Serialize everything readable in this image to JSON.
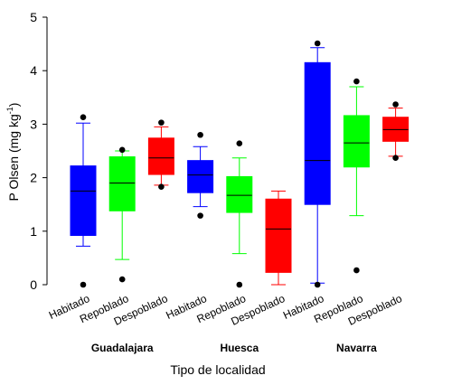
{
  "chart_data": {
    "type": "box",
    "ylabel": "P Olsen (mg kg-1)",
    "ylabel_main": "P Olsen (mg kg",
    "ylabel_sup": "-1",
    "ylabel_end": ")",
    "xlabel": "Tipo de localidad",
    "ylim": [
      0,
      5
    ],
    "yticks": [
      "0",
      "1",
      "2",
      "3",
      "4",
      "5"
    ],
    "grid": false,
    "groups": [
      "Guadalajara",
      "Huesca",
      "Navarra"
    ],
    "colors": {
      "Habitado": "#0000ff",
      "Repoblado": "#00ff00",
      "Despoblado": "#ff0000"
    },
    "boxes": [
      {
        "group": "Guadalajara",
        "category": "Habitado",
        "min": 0.72,
        "q1": 0.92,
        "median": 1.75,
        "q3": 2.22,
        "max": 3.02,
        "outliers": [
          0.0,
          3.13
        ]
      },
      {
        "group": "Guadalajara",
        "category": "Repoblado",
        "min": 0.47,
        "q1": 1.38,
        "median": 1.9,
        "q3": 2.39,
        "max": 2.5,
        "outliers": [
          0.1,
          2.52
        ]
      },
      {
        "group": "Guadalajara",
        "category": "Despoblado",
        "min": 1.86,
        "q1": 2.06,
        "median": 2.37,
        "q3": 2.74,
        "max": 2.95,
        "outliers": [
          1.83,
          3.03
        ]
      },
      {
        "group": "Huesca",
        "category": "Habitado",
        "min": 1.46,
        "q1": 1.72,
        "median": 2.05,
        "q3": 2.32,
        "max": 2.58,
        "outliers": [
          1.29,
          2.8
        ]
      },
      {
        "group": "Huesca",
        "category": "Repoblado",
        "min": 0.58,
        "q1": 1.35,
        "median": 1.67,
        "q3": 2.02,
        "max": 2.37,
        "outliers": [
          0.0,
          2.64
        ]
      },
      {
        "group": "Huesca",
        "category": "Despoblado",
        "min": 0.0,
        "q1": 0.23,
        "median": 1.04,
        "q3": 1.6,
        "max": 1.75,
        "outliers": []
      },
      {
        "group": "Navarra",
        "category": "Habitado",
        "min": 0.03,
        "q1": 1.5,
        "median": 2.32,
        "q3": 4.15,
        "max": 4.43,
        "outliers": [
          0.0,
          4.51
        ]
      },
      {
        "group": "Navarra",
        "category": "Repoblado",
        "min": 1.29,
        "q1": 2.2,
        "median": 2.65,
        "q3": 3.16,
        "max": 3.7,
        "outliers": [
          0.27,
          3.8
        ]
      },
      {
        "group": "Navarra",
        "category": "Despoblado",
        "min": 2.4,
        "q1": 2.68,
        "median": 2.9,
        "q3": 3.13,
        "max": 3.3,
        "outliers": [
          2.37,
          3.37
        ]
      }
    ]
  }
}
